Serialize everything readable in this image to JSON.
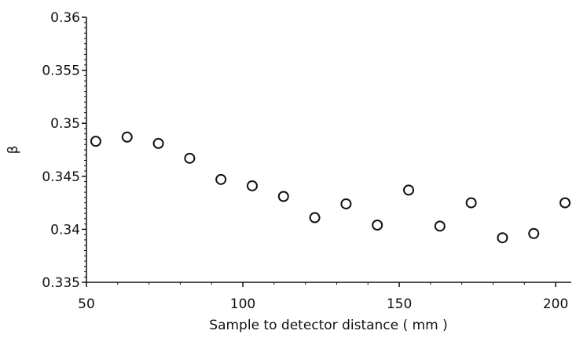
{
  "chart_data": {
    "type": "scatter",
    "title": "",
    "xlabel": "Sample to detector distance ( mm )",
    "ylabel": "β",
    "xlim": [
      50,
      205
    ],
    "ylim": [
      0.335,
      0.36
    ],
    "xticks": [
      "50",
      "100",
      "150",
      "200"
    ],
    "yticks": [
      "0.335",
      "0.34",
      "0.345",
      "0.35",
      "0.355",
      "0.36"
    ],
    "grid": false,
    "legend": "none",
    "marker": "open-circle",
    "colors": {
      "marker": "#111111",
      "axis": "#111111"
    },
    "series": [
      {
        "x": [
          53,
          63,
          73,
          83,
          93,
          103,
          113,
          123,
          133,
          143,
          153,
          163,
          173,
          183,
          193,
          203
        ],
        "y": [
          0.3483,
          0.3487,
          0.3481,
          0.3467,
          0.3447,
          0.3441,
          0.3431,
          0.3411,
          0.3424,
          0.3404,
          0.3437,
          0.3403,
          0.3425,
          0.3392,
          0.3396,
          0.3425
        ]
      }
    ]
  }
}
